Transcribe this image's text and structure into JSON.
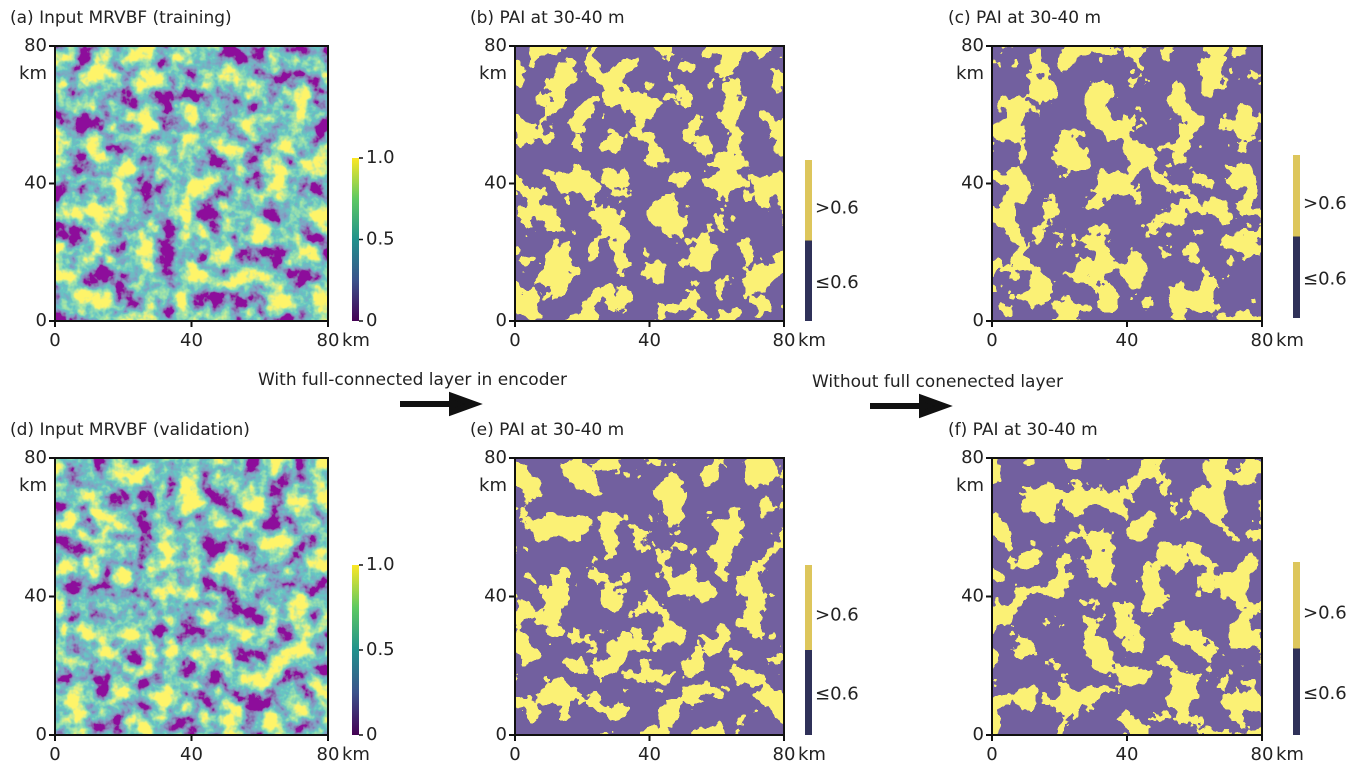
{
  "panels": [
    {
      "title": "(a) Input MRVBF (training)",
      "xticks": [
        0,
        40,
        80
      ],
      "yticks": [
        0,
        40,
        80
      ],
      "unit": "km",
      "colorbar": {
        "type": "continuous",
        "ticks": [
          0,
          0.5,
          {
            "value": 1,
            "label": "1.0"
          }
        ]
      }
    },
    {
      "title": "(b) PAI at 30-40 m",
      "xticks": [
        0,
        40,
        80
      ],
      "yticks": [
        0,
        40,
        80
      ],
      "unit": "km",
      "colorbar": {
        "type": "binary",
        "labels": [
          ">0.6",
          "≤0.6"
        ]
      }
    },
    {
      "title": "(c) PAI at 30-40 m",
      "xticks": [
        0,
        40,
        80
      ],
      "yticks": [
        0,
        40,
        80
      ],
      "unit": "km",
      "colorbar": {
        "type": "binary",
        "labels": [
          ">0.6",
          "≤0.6"
        ]
      }
    },
    {
      "title": "(d) Input MRVBF (validation)",
      "xticks": [
        0,
        40,
        80
      ],
      "yticks": [
        0,
        40,
        80
      ],
      "unit": "km",
      "colorbar": {
        "type": "continuous",
        "ticks": [
          0,
          0.5,
          {
            "value": 1,
            "label": "1.0"
          }
        ]
      }
    },
    {
      "title": "(e) PAI at 30-40 m",
      "xticks": [
        0,
        40,
        80
      ],
      "yticks": [
        0,
        40,
        80
      ],
      "unit": "km",
      "colorbar": {
        "type": "binary",
        "labels": [
          ">0.6",
          "≤0.6"
        ]
      }
    },
    {
      "title": "(f) PAI at 30-40 m",
      "xticks": [
        0,
        40,
        80
      ],
      "yticks": [
        0,
        40,
        80
      ],
      "unit": "km",
      "colorbar": {
        "type": "binary",
        "labels": [
          ">0.6",
          "≤0.6"
        ]
      }
    }
  ],
  "captions": [
    "With full-connected layer in encoder",
    "Without full conenected layer"
  ]
}
